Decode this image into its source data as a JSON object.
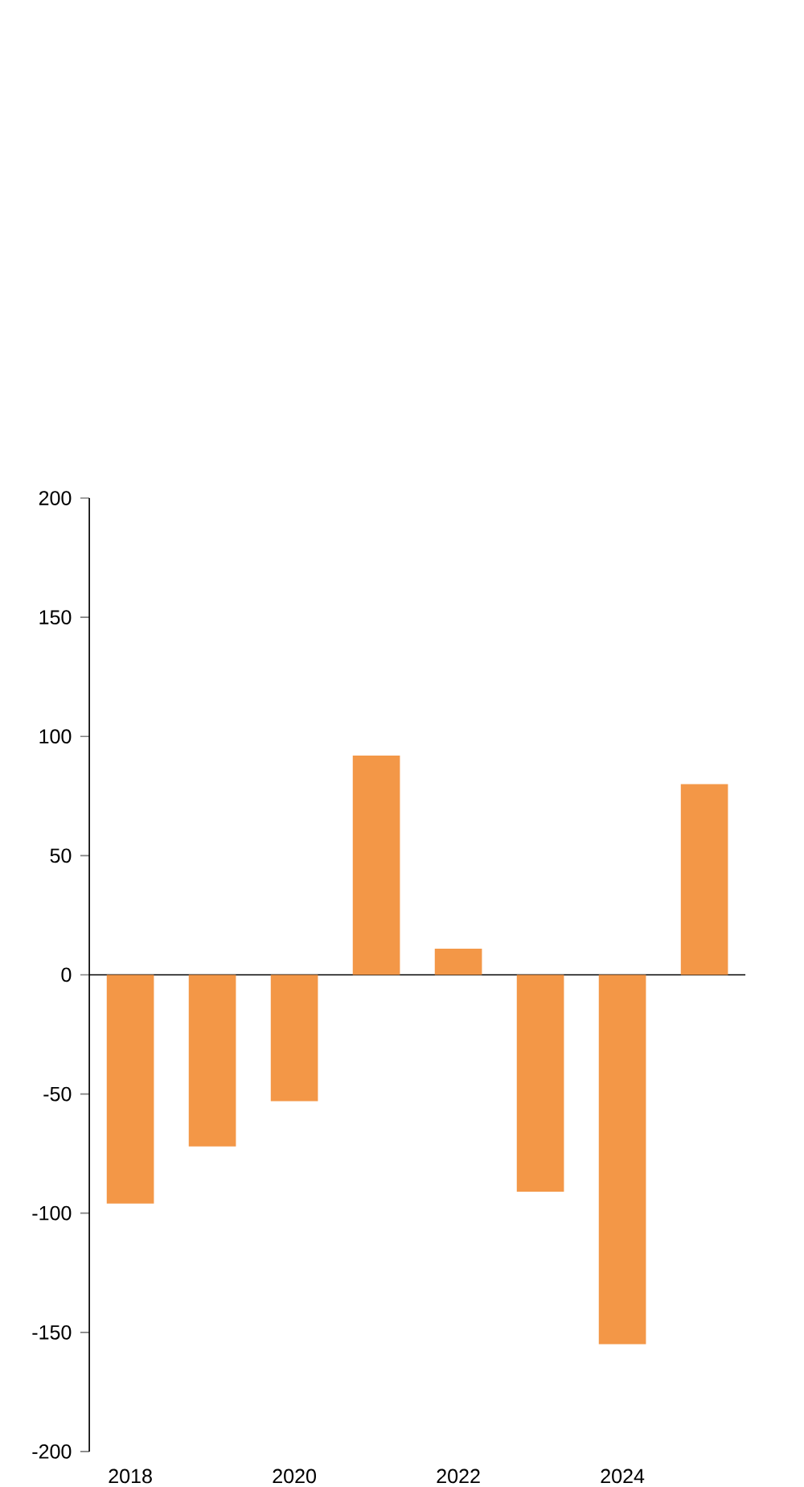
{
  "chart_data": {
    "type": "bar",
    "categories": [
      "2018",
      null,
      "2020",
      null,
      "2022",
      null,
      "2024",
      null
    ],
    "values": [
      -96,
      -72,
      -53,
      92,
      11,
      -91,
      -155,
      80
    ],
    "color": "#f39747",
    "ylim": [
      -200,
      200
    ],
    "yticks": [
      -200,
      -150,
      -100,
      -50,
      0,
      50,
      100,
      150,
      200
    ]
  }
}
